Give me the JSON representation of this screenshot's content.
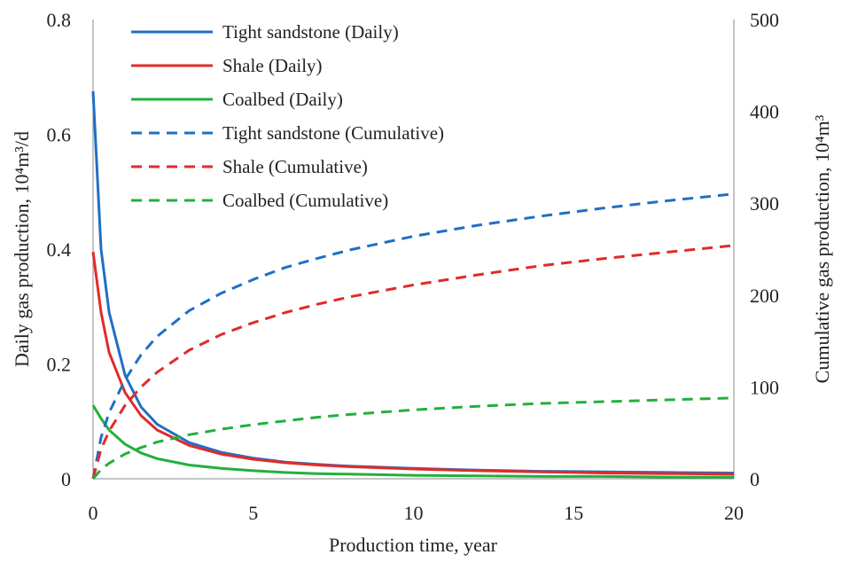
{
  "chart_data": {
    "type": "line",
    "xlabel": "Production time, year",
    "ylabel_left": "Daily gas production, 10⁴m³/d",
    "ylabel_right": "Cumulative gas production, 10⁴m³",
    "xlim": [
      0,
      20
    ],
    "ylim_left": [
      0,
      0.8
    ],
    "ylim_right": [
      0,
      500
    ],
    "x_ticks": [
      "0",
      "5",
      "10",
      "15",
      "20"
    ],
    "y_ticks_left": [
      "0",
      "0.2",
      "0.4",
      "0.6",
      "0.8"
    ],
    "y_ticks_right": [
      "0",
      "100",
      "200",
      "300",
      "400",
      "500"
    ],
    "grid": false,
    "legend_position": "top-left",
    "x": [
      0,
      0.25,
      0.5,
      1,
      1.5,
      2,
      3,
      4,
      5,
      6,
      7,
      8,
      10,
      12,
      14,
      16,
      18,
      20
    ],
    "series": [
      {
        "name": "Tight sandstone (Daily)",
        "axis": "left",
        "style": "solid",
        "color": "#1f6fc5",
        "values": [
          0.675,
          0.4,
          0.29,
          0.18,
          0.125,
          0.095,
          0.063,
          0.046,
          0.036,
          0.029,
          0.025,
          0.022,
          0.018,
          0.015,
          0.013,
          0.012,
          0.011,
          0.01
        ]
      },
      {
        "name": "Shale (Daily)",
        "axis": "left",
        "style": "solid",
        "color": "#e02b2b",
        "values": [
          0.395,
          0.29,
          0.22,
          0.15,
          0.11,
          0.085,
          0.058,
          0.043,
          0.034,
          0.028,
          0.024,
          0.021,
          0.017,
          0.014,
          0.012,
          0.01,
          0.009,
          0.008
        ]
      },
      {
        "name": "Coalbed (Daily)",
        "axis": "left",
        "style": "solid",
        "color": "#22b03c",
        "values": [
          0.128,
          0.105,
          0.085,
          0.06,
          0.045,
          0.035,
          0.024,
          0.018,
          0.014,
          0.011,
          0.009,
          0.008,
          0.006,
          0.005,
          0.004,
          0.004,
          0.003,
          0.003
        ]
      },
      {
        "name": "Tight sandstone (Cumulative)",
        "axis": "right",
        "style": "dashed",
        "color": "#1f6fc5",
        "values": [
          0,
          45,
          72,
          108,
          135,
          155,
          183,
          202,
          217,
          230,
          240,
          249,
          264,
          276,
          286,
          295,
          303,
          310
        ]
      },
      {
        "name": "Shale (Cumulative)",
        "axis": "right",
        "style": "dashed",
        "color": "#e02b2b",
        "values": [
          0,
          32,
          52,
          80,
          100,
          116,
          140,
          157,
          170,
          181,
          190,
          198,
          211,
          222,
          232,
          240,
          247,
          254
        ]
      },
      {
        "name": "Coalbed (Cumulative)",
        "axis": "right",
        "style": "dashed",
        "color": "#22b03c",
        "values": [
          0,
          10,
          17,
          27,
          34,
          40,
          48,
          54,
          59,
          63,
          67,
          70,
          75,
          79,
          82,
          84,
          86,
          88
        ]
      }
    ]
  }
}
